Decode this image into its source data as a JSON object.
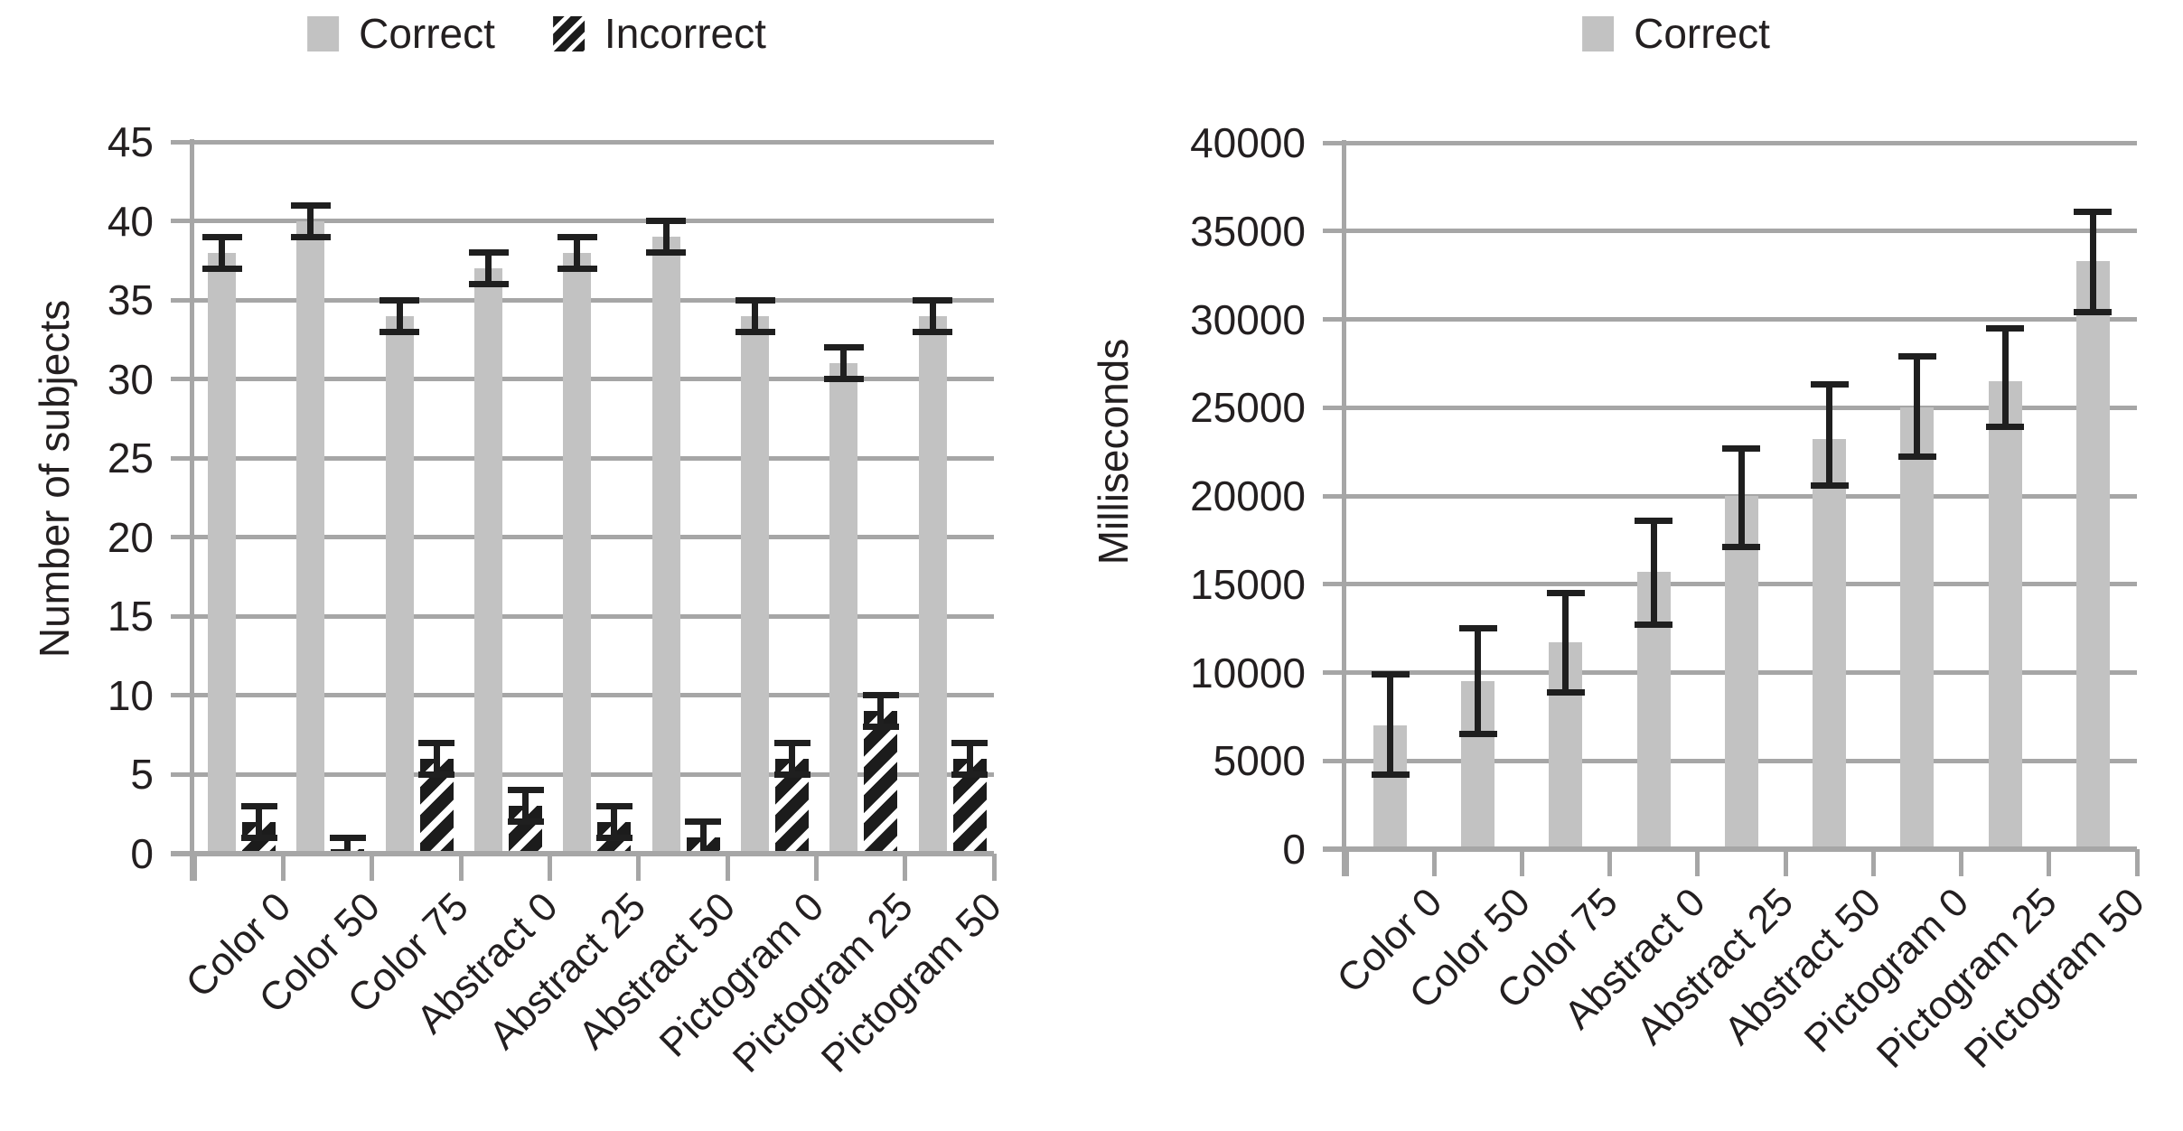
{
  "figure": {
    "background": "#ffffff",
    "bar_color": "#c2c2c2",
    "grid_color": "#a6a6a6",
    "error_color": "#1f1f1f",
    "text_color": "#231f20"
  },
  "chart_data": [
    {
      "type": "bar",
      "title": "",
      "ylabel": "Number of subjects",
      "xlabel": "",
      "categories": [
        "Color 0",
        "Color 50",
        "Color 75",
        "Abstract 0",
        "Abstract 25",
        "Abstract 50",
        "Pictogram 0",
        "Pictogram 25",
        "Pictogram 50"
      ],
      "ylim": [
        0,
        45
      ],
      "ytick_step": 5,
      "grid": "horizontal",
      "legend_position": "top",
      "series": [
        {
          "name": "Correct",
          "style": "solid",
          "values": [
            38,
            40,
            34,
            37,
            38,
            39,
            34,
            31,
            34
          ],
          "err_low": [
            37,
            39,
            33,
            36,
            37,
            38,
            33,
            30,
            33
          ],
          "err_high": [
            39,
            41,
            35,
            38,
            39,
            40,
            35,
            32,
            35
          ]
        },
        {
          "name": "Incorrect",
          "style": "hatched",
          "values": [
            2,
            0.3,
            6,
            3,
            2,
            1,
            6,
            9,
            6
          ],
          "err_low": [
            1,
            0,
            5,
            2,
            1,
            0,
            5,
            8,
            5
          ],
          "err_high": [
            3,
            1,
            7,
            4,
            3,
            2,
            7,
            10,
            7
          ]
        }
      ]
    },
    {
      "type": "bar",
      "title": "",
      "ylabel": "Milliseconds",
      "xlabel": "",
      "categories": [
        "Color 0",
        "Color 50",
        "Color 75",
        "Abstract 0",
        "Abstract 25",
        "Abstract 50",
        "Pictogram 0",
        "Pictogram 25",
        "Pictogram 50"
      ],
      "ylim": [
        0,
        40000
      ],
      "ytick_step": 5000,
      "grid": "horizontal",
      "legend_position": "top",
      "series": [
        {
          "name": "Correct",
          "style": "solid",
          "values": [
            7000,
            9500,
            11700,
            15700,
            20000,
            23200,
            25000,
            26500,
            33300
          ],
          "err_low": [
            4200,
            6500,
            8900,
            12700,
            17100,
            20600,
            22200,
            23900,
            30400
          ],
          "err_high": [
            9900,
            12500,
            14500,
            18600,
            22700,
            26300,
            27900,
            29500,
            36100
          ]
        }
      ]
    }
  ]
}
